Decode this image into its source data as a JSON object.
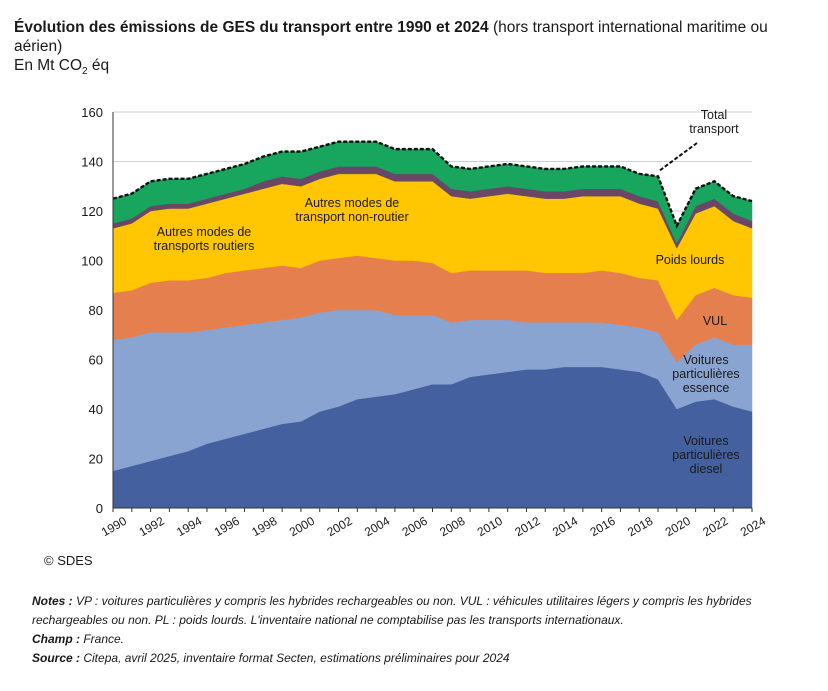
{
  "title": {
    "bold": "Évolution des émissions de GES du transport entre 1990 et 2024",
    "normal": " (hors transport international maritime ou aérien)",
    "unit_prefix": "En Mt CO",
    "unit_sub": "2",
    "unit_suffix": " éq"
  },
  "copyright": "© SDES",
  "notes": {
    "notes_label": "Notes :",
    "notes_text": " VP : voitures particulières y compris les hybrides rechargeables ou non. VUL : véhicules utilitaires légers y compris les hybrides rechargeables ou non. PL : poids lourds. L'inventaire national ne comptabilise pas les transports internationaux.",
    "champ_label": "Champ :",
    "champ_text": " France.",
    "source_label": "Source :",
    "source_text": " Citepa, avril 2025, inventaire format Secten, estimations préliminaires pour 2024"
  },
  "chart_data": {
    "type": "area",
    "stacked": true,
    "ylim": [
      0,
      160
    ],
    "yticks": [
      0,
      20,
      40,
      60,
      80,
      100,
      120,
      140,
      160
    ],
    "xlim": [
      1990,
      2024
    ],
    "xticks": [
      1990,
      1992,
      1994,
      1996,
      1998,
      2000,
      2002,
      2004,
      2006,
      2008,
      2010,
      2012,
      2014,
      2016,
      2018,
      2020,
      2022,
      2024
    ],
    "grid": true,
    "x": [
      1990,
      1991,
      1992,
      1993,
      1994,
      1995,
      1996,
      1997,
      1998,
      1999,
      2000,
      2001,
      2002,
      2003,
      2004,
      2005,
      2006,
      2007,
      2008,
      2009,
      2010,
      2011,
      2012,
      2013,
      2014,
      2015,
      2016,
      2017,
      2018,
      2019,
      2020,
      2021,
      2022,
      2023,
      2024
    ],
    "series": [
      {
        "name": "Voitures particulières diesel",
        "color": "#44609f",
        "values": [
          15,
          17,
          19,
          21,
          23,
          26,
          28,
          30,
          32,
          34,
          35,
          39,
          41,
          44,
          45,
          46,
          48,
          50,
          50,
          53,
          54,
          55,
          56,
          56,
          57,
          57,
          57,
          56,
          55,
          52,
          40,
          43,
          44,
          41,
          39
        ]
      },
      {
        "name": "Voitures particulières essence",
        "color": "#8aa4d2",
        "values": [
          53,
          52,
          52,
          50,
          48,
          46,
          45,
          44,
          43,
          42,
          42,
          40,
          39,
          36,
          35,
          32,
          30,
          28,
          25,
          23,
          22,
          21,
          19,
          19,
          18,
          18,
          18,
          18,
          18,
          19,
          19,
          23,
          25,
          25,
          27
        ]
      },
      {
        "name": "VUL",
        "color": "#e67f4e",
        "values": [
          19,
          19,
          20,
          21,
          21,
          21,
          22,
          22,
          22,
          22,
          20,
          21,
          21,
          22,
          21,
          22,
          22,
          21,
          20,
          20,
          20,
          20,
          21,
          20,
          20,
          20,
          21,
          21,
          20,
          21,
          17,
          20,
          20,
          20,
          19
        ]
      },
      {
        "name": "Poids lourds",
        "color": "#ffc601",
        "values": [
          26,
          27,
          29,
          29,
          29,
          30,
          30,
          31,
          32,
          33,
          33,
          33,
          34,
          33,
          34,
          32,
          32,
          33,
          31,
          29,
          30,
          31,
          30,
          30,
          30,
          31,
          30,
          31,
          30,
          29,
          29,
          33,
          33,
          30,
          28
        ]
      },
      {
        "name": "Autres modes de transports routiers",
        "color": "#6b4767",
        "values": [
          2,
          2,
          2,
          2,
          2,
          2,
          2,
          2,
          3,
          3,
          3,
          3,
          3,
          3,
          3,
          3,
          3,
          3,
          3,
          3,
          3,
          3,
          3,
          3,
          3,
          3,
          3,
          3,
          3,
          3,
          2,
          3,
          3,
          3,
          3
        ]
      },
      {
        "name": "Autres modes de transport non-routier",
        "color": "#18a55e",
        "values": [
          10,
          10,
          10,
          10,
          10,
          10,
          10,
          10,
          10,
          10,
          11,
          10,
          10,
          10,
          10,
          10,
          10,
          10,
          9,
          9,
          9,
          9,
          9,
          9,
          9,
          9,
          9,
          9,
          9,
          10,
          7,
          7,
          7,
          7,
          8
        ]
      }
    ],
    "total_name": "Total transport",
    "labels": [
      {
        "key": "total",
        "text": "Total\ntransport"
      },
      {
        "key": "non_routier",
        "text": "Autres modes de\ntransport non-routier"
      },
      {
        "key": "routiers",
        "text": "Autres modes de\ntransports routiers"
      },
      {
        "key": "pl",
        "text": "Poids lourds"
      },
      {
        "key": "vul",
        "text": "VUL"
      },
      {
        "key": "essence",
        "text": "Voitures\nparticulières\nessence"
      },
      {
        "key": "diesel",
        "text": "Voitures\nparticulières\ndiesel"
      }
    ]
  }
}
